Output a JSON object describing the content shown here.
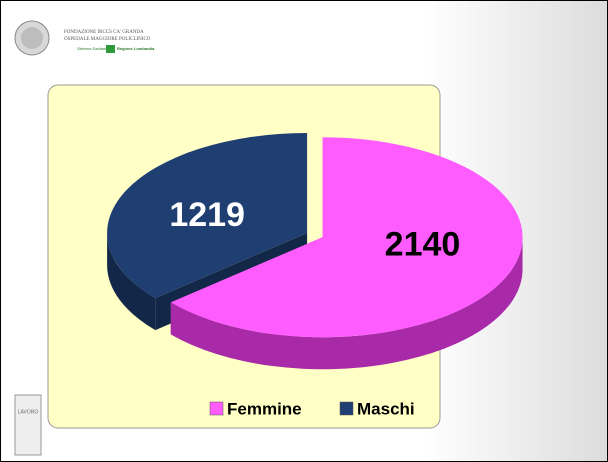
{
  "header": {
    "institution": "FONDAZIONE IRCCS CA' GRANDA",
    "hospital": "OSPEDALE MAGGIORE POLICLINICO",
    "system": "Sistema Sanitario",
    "region": "Regione Lombardia"
  },
  "footer": {
    "logo": "LAVORO"
  },
  "chart_data": {
    "type": "pie",
    "categories": [
      "Femmine",
      "Maschi"
    ],
    "values": [
      2140,
      1219
    ],
    "colors": [
      "#ff5cff",
      "#1f3f73"
    ],
    "side_colors": [
      "#a82aa8",
      "#132848"
    ],
    "label_colors": [
      "#000000",
      "#ffffff"
    ],
    "legend": "bottom"
  }
}
